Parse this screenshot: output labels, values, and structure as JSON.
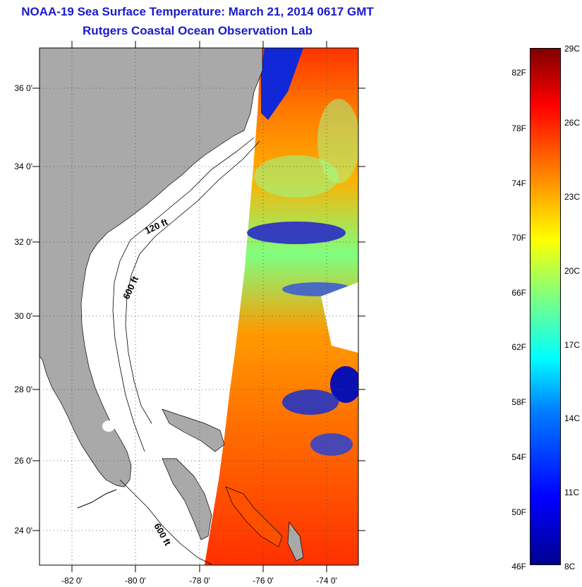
{
  "header": {
    "title": "NOAA-19 Sea Surface Temperature:  March 21, 2014 0617 GMT",
    "subtitle": "Rutgers Coastal Ocean Observation Lab"
  },
  "map": {
    "lat_labels": [
      "36 0'",
      "34 0'",
      "32 0'",
      "30 0'",
      "28 0'",
      "26 0'",
      "24 0'"
    ],
    "lon_labels": [
      "-82 0'",
      "-80 0'",
      "-78 0'",
      "-76 0'",
      "-74 0'"
    ],
    "contour_labels": [
      "120 ft",
      "600 ft",
      "600 ft"
    ],
    "colors": {
      "land": "#a9a9a9",
      "water_nodata": "#ffffff",
      "title": "#1a1acc"
    }
  },
  "colorbar": {
    "fahrenheit_labels": [
      "82F",
      "78F",
      "74F",
      "70F",
      "66F",
      "62F",
      "58F",
      "54F",
      "50F",
      "46F"
    ],
    "celsius_labels": [
      "29C",
      "26C",
      "23C",
      "20C",
      "17C",
      "14C",
      "11C",
      "8C"
    ],
    "colors": [
      "#00008f",
      "#0000ff",
      "#0080ff",
      "#00ffff",
      "#80ff80",
      "#ffff00",
      "#ff8000",
      "#ff0000",
      "#800000"
    ]
  }
}
